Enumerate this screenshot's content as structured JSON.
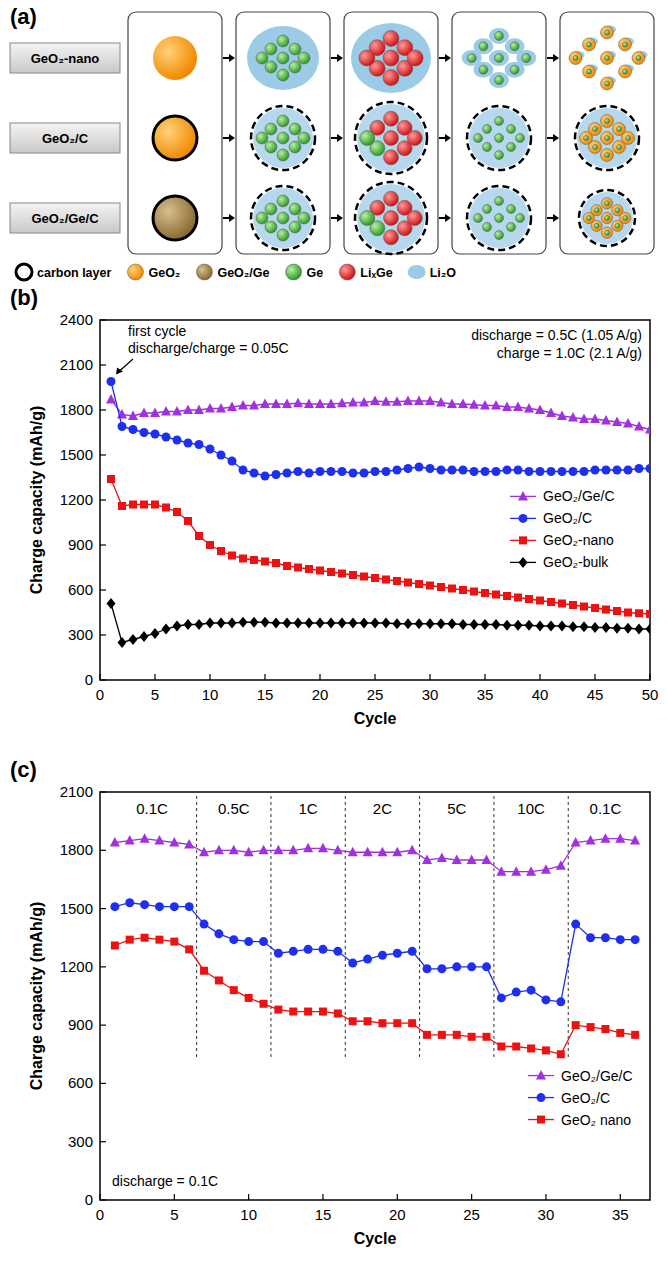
{
  "panel_a": {
    "panel_label": "(a)",
    "rows": [
      "GeO₂-nano",
      "GeO₂/C",
      "GeO₂/Ge/C"
    ],
    "key_items": [
      "carbon layer",
      "GeO₂",
      "GeO₂/Ge",
      "Ge",
      "LiₓGe",
      "Li₂O"
    ]
  },
  "chart_data": [
    {
      "type": "line",
      "panel_label": "(b)",
      "x_label": "Cycle",
      "y_label": "Charge capacity (mAh/g)",
      "x": [
        1,
        2,
        3,
        4,
        5,
        6,
        7,
        8,
        9,
        10,
        11,
        12,
        13,
        14,
        15,
        16,
        17,
        18,
        19,
        20,
        21,
        22,
        23,
        24,
        25,
        26,
        27,
        28,
        29,
        30,
        31,
        32,
        33,
        34,
        35,
        36,
        37,
        38,
        39,
        40,
        41,
        42,
        43,
        44,
        45,
        46,
        47,
        48,
        49,
        50
      ],
      "xlim": [
        0,
        50
      ],
      "xticks": [
        0,
        5,
        10,
        15,
        20,
        25,
        30,
        35,
        40,
        45,
        50
      ],
      "ylim": [
        0,
        2400
      ],
      "yticks": [
        0,
        300,
        600,
        900,
        1200,
        1500,
        1800,
        2100,
        2400
      ],
      "grid": false,
      "legend": "right",
      "annotations": [
        "first cycle",
        "discharge/charge = 0.05C",
        "discharge = 0.5C (1.05 A/g)",
        "charge = 1.0C (2.1 A/g)"
      ],
      "series": [
        {
          "name": "GeO₂/Ge/C",
          "color": "#a030e0",
          "marker": "triangle",
          "line_style": "solid",
          "values": [
            1870,
            1770,
            1760,
            1780,
            1780,
            1790,
            1790,
            1800,
            1800,
            1810,
            1810,
            1820,
            1830,
            1830,
            1840,
            1840,
            1840,
            1845,
            1840,
            1840,
            1840,
            1845,
            1850,
            1850,
            1860,
            1855,
            1855,
            1860,
            1860,
            1860,
            1850,
            1840,
            1840,
            1835,
            1830,
            1830,
            1820,
            1820,
            1810,
            1800,
            1780,
            1760,
            1750,
            1740,
            1740,
            1730,
            1720,
            1710,
            1690,
            1670
          ]
        },
        {
          "name": "GeO₂/C",
          "color": "#1f2ff0",
          "marker": "circle",
          "line_style": "solid",
          "values": [
            1990,
            1690,
            1670,
            1650,
            1640,
            1620,
            1600,
            1580,
            1570,
            1540,
            1500,
            1460,
            1400,
            1380,
            1360,
            1370,
            1380,
            1390,
            1380,
            1390,
            1390,
            1390,
            1380,
            1380,
            1390,
            1390,
            1400,
            1410,
            1420,
            1410,
            1400,
            1400,
            1400,
            1390,
            1390,
            1390,
            1400,
            1400,
            1390,
            1390,
            1390,
            1390,
            1390,
            1390,
            1400,
            1400,
            1400,
            1400,
            1410,
            1410
          ]
        },
        {
          "name": "GeO₂-nano",
          "color": "#ee1111",
          "marker": "square",
          "line_style": "solid",
          "values": [
            1340,
            1160,
            1170,
            1170,
            1170,
            1150,
            1120,
            1060,
            960,
            900,
            860,
            830,
            810,
            800,
            790,
            780,
            760,
            750,
            740,
            730,
            720,
            710,
            700,
            690,
            680,
            670,
            660,
            650,
            640,
            630,
            620,
            610,
            600,
            590,
            580,
            570,
            560,
            550,
            540,
            530,
            520,
            510,
            500,
            490,
            480,
            470,
            460,
            450,
            445,
            440
          ]
        },
        {
          "name": "GeO₂-bulk",
          "color": "#000000",
          "marker": "diamond",
          "line_style": "solid",
          "values": [
            510,
            250,
            270,
            290,
            310,
            340,
            360,
            370,
            370,
            380,
            380,
            380,
            385,
            385,
            385,
            380,
            380,
            380,
            380,
            380,
            380,
            380,
            380,
            380,
            380,
            380,
            375,
            375,
            375,
            375,
            375,
            375,
            370,
            370,
            370,
            370,
            365,
            365,
            365,
            360,
            360,
            360,
            355,
            355,
            350,
            350,
            345,
            345,
            340,
            340
          ]
        }
      ]
    },
    {
      "type": "line",
      "panel_label": "(c)",
      "x_label": "Cycle",
      "y_label": "Charge capacity (mAh/g)",
      "x": [
        1,
        2,
        3,
        4,
        5,
        6,
        7,
        8,
        9,
        10,
        11,
        12,
        13,
        14,
        15,
        16,
        17,
        18,
        19,
        20,
        21,
        22,
        23,
        24,
        25,
        26,
        27,
        28,
        29,
        30,
        31,
        32,
        33,
        34,
        35,
        36
      ],
      "xlim": [
        0,
        37
      ],
      "xticks": [
        0,
        5,
        10,
        15,
        20,
        25,
        30,
        35
      ],
      "ylim": [
        0,
        2100
      ],
      "yticks": [
        0,
        300,
        600,
        900,
        1200,
        1500,
        1800,
        2100
      ],
      "grid": false,
      "legend": "bottom-right",
      "annotations": [
        "discharge = 0.1C"
      ],
      "rates": [
        {
          "label": "0.1C",
          "from": 0.5,
          "to": 6.5
        },
        {
          "label": "0.5C",
          "from": 6.5,
          "to": 11.5
        },
        {
          "label": "1C",
          "from": 11.5,
          "to": 16.5
        },
        {
          "label": "2C",
          "from": 16.5,
          "to": 21.5
        },
        {
          "label": "5C",
          "from": 21.5,
          "to": 26.5
        },
        {
          "label": "10C",
          "from": 26.5,
          "to": 31.5
        },
        {
          "label": "0.1C",
          "from": 31.5,
          "to": 36.5
        }
      ],
      "series": [
        {
          "name": "GeO₂/Ge/C",
          "color": "#a030e0",
          "marker": "triangle",
          "line_style": "solid",
          "values": [
            1840,
            1850,
            1860,
            1850,
            1840,
            1830,
            1790,
            1800,
            1800,
            1790,
            1800,
            1800,
            1800,
            1810,
            1810,
            1800,
            1790,
            1790,
            1790,
            1790,
            1800,
            1750,
            1760,
            1750,
            1750,
            1750,
            1690,
            1690,
            1690,
            1700,
            1720,
            1840,
            1850,
            1860,
            1860,
            1850
          ]
        },
        {
          "name": "GeO₂/C",
          "color": "#1f2ff0",
          "marker": "circle",
          "line_style": "solid",
          "values": [
            1510,
            1530,
            1520,
            1510,
            1510,
            1510,
            1420,
            1370,
            1340,
            1330,
            1330,
            1270,
            1280,
            1290,
            1290,
            1280,
            1220,
            1240,
            1260,
            1270,
            1280,
            1190,
            1190,
            1200,
            1200,
            1200,
            1040,
            1070,
            1080,
            1030,
            1020,
            1420,
            1350,
            1350,
            1340,
            1340
          ]
        },
        {
          "name": "GeO₂ nano",
          "color": "#ee1111",
          "marker": "square",
          "line_style": "solid",
          "values": [
            1310,
            1340,
            1350,
            1340,
            1330,
            1290,
            1180,
            1130,
            1080,
            1040,
            1010,
            980,
            970,
            970,
            970,
            960,
            920,
            920,
            910,
            910,
            910,
            850,
            850,
            850,
            840,
            840,
            790,
            790,
            780,
            770,
            750,
            900,
            890,
            880,
            860,
            850
          ]
        }
      ]
    }
  ]
}
